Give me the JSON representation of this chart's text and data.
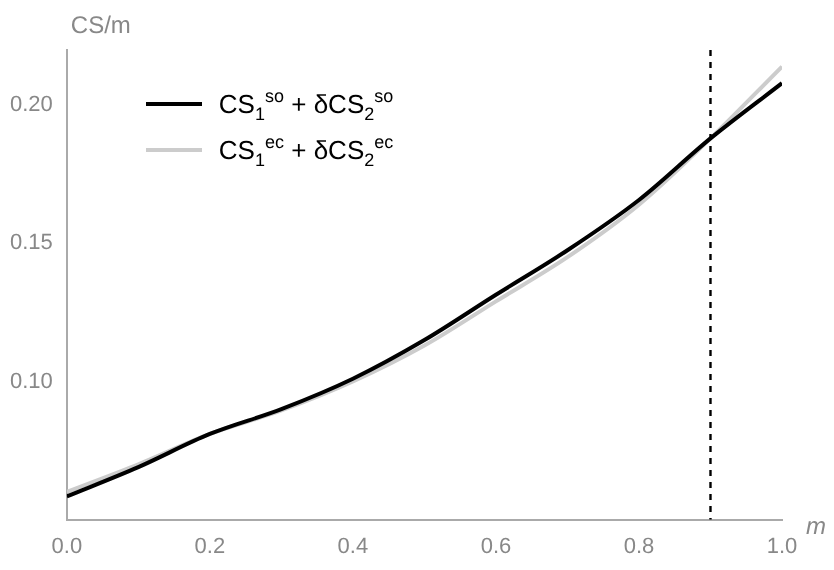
{
  "chart_data": {
    "type": "line",
    "xlabel": "m",
    "ylabel": "CS/m",
    "x": [
      0,
      0.1,
      0.2,
      0.3,
      0.4,
      0.5,
      0.6,
      0.7,
      0.8,
      0.9,
      1.0
    ],
    "series": [
      {
        "name": "CS$_{1}$$^{so}$ + δCS$_{2}$$^{so}$",
        "color": "#000000",
        "values": [
          0.0584,
          0.069,
          0.081,
          0.09,
          0.101,
          0.115,
          0.1314,
          0.1475,
          0.1657,
          0.188,
          0.208
        ]
      },
      {
        "name": "CS$_{1}$$^{ec}$ + δCS$_{2}$$^{ec}$",
        "color": "#cccccc",
        "values": [
          0.06,
          0.07,
          0.081,
          0.0895,
          0.1,
          0.113,
          0.129,
          0.145,
          0.164,
          0.188,
          0.214
        ]
      }
    ],
    "xlim": [
      0,
      1.0
    ],
    "xticks": [
      {
        "value": 0,
        "label": "0.0"
      },
      0.2,
      0.4,
      0.6,
      0.8,
      {
        "value": 1.0,
        "label": "1.0"
      }
    ],
    "ylim": [
      0.05,
      0.22
    ],
    "yticks": [
      {
        "value": 0.1,
        "label": "0.10"
      },
      0.15,
      {
        "value": 0.2,
        "label": "0.20"
      }
    ],
    "ref_lines": [
      {
        "axis": "x",
        "value": 0.9,
        "line_style": "dashed",
        "color": "#000000"
      }
    ],
    "legend": "top left",
    "grid": false,
    "marker": "none",
    "line_style": "solid"
  }
}
